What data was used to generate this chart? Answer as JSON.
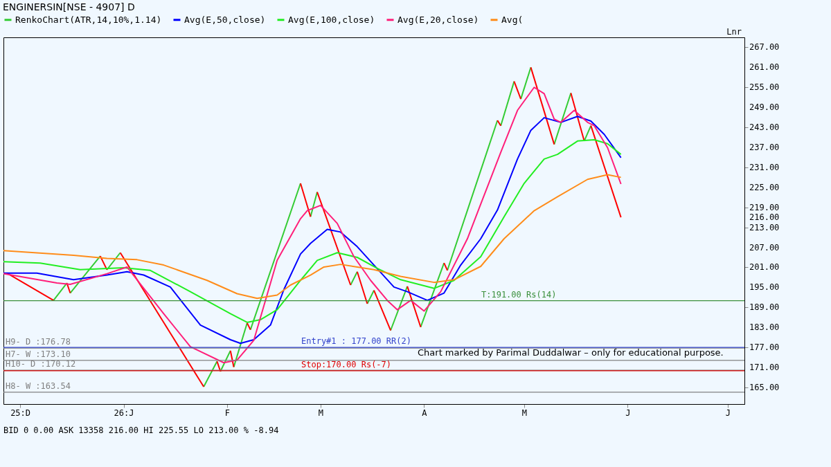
{
  "chart_data": {
    "type": "line",
    "title": "ENGINERSIN[NSE - 4907] D",
    "xlim": [
      "2025-11-26",
      "2026-07-06"
    ],
    "xticks": [
      {
        "value": "2025-12-01",
        "label": "25:D"
      },
      {
        "value": "2026-01-01",
        "label": "26:J"
      },
      {
        "value": "2026-02-01",
        "label": "F"
      },
      {
        "value": "2026-03-01",
        "label": "M"
      },
      {
        "value": "2026-04-01",
        "label": "A"
      },
      {
        "value": "2026-05-01",
        "label": "M"
      },
      {
        "value": "2026-06-01",
        "label": "J"
      },
      {
        "value": "2026-07-01",
        "label": "J"
      }
    ],
    "ylim": [
      160,
      270
    ],
    "yticks": [
      {
        "value": 165,
        "label": "165.00"
      },
      {
        "value": 171,
        "label": "171.00"
      },
      {
        "value": 177,
        "label": "177.00"
      },
      {
        "value": 183,
        "label": "183.00"
      },
      {
        "value": 189,
        "label": "189.00"
      },
      {
        "value": 195,
        "label": "195.00"
      },
      {
        "value": 201,
        "label": "201.00"
      },
      {
        "value": 207,
        "label": "207.00"
      },
      {
        "value": 213,
        "label": "213.00"
      },
      {
        "value": 216,
        "label": "216.00"
      },
      {
        "value": 219,
        "label": "219.00"
      },
      {
        "value": 225,
        "label": "225.00"
      },
      {
        "value": 231,
        "label": "231.00"
      },
      {
        "value": 237,
        "label": "237.00"
      },
      {
        "value": 243,
        "label": "243.00"
      },
      {
        "value": 249,
        "label": "249.00"
      },
      {
        "value": 255,
        "label": "255.00"
      },
      {
        "value": 261,
        "label": "261.00"
      },
      {
        "value": 267,
        "label": "267.00"
      }
    ],
    "grid": false,
    "legend": "top left",
    "series": [
      {
        "name": "RenkoChart(ATR,14,10%,1.14)",
        "color": "#33cc33",
        "x": [
          "2025-12-11",
          "2025-12-15"
        ],
        "values": [
          191.1,
          196.3
        ]
      },
      {
        "color": "#33cc33",
        "x": [
          "2025-12-16",
          "2025-12-25"
        ],
        "values": [
          193.3,
          204.4
        ]
      },
      {
        "color": "#33cc33",
        "x": [
          "2025-12-27",
          "2025-12-31"
        ],
        "values": [
          200.3,
          205.4
        ]
      },
      {
        "color": "#33cc33",
        "x": [
          "2026-01-25",
          "2026-01-29"
        ],
        "values": [
          165.2,
          172.8
        ]
      },
      {
        "color": "#33cc33",
        "x": [
          "2026-01-30",
          "2026-02-02"
        ],
        "values": [
          169.8,
          176.0
        ]
      },
      {
        "color": "#33cc33",
        "x": [
          "2026-02-03",
          "2026-02-07"
        ],
        "values": [
          171.1,
          184.3
        ]
      },
      {
        "color": "#33cc33",
        "x": [
          "2026-02-08",
          "2026-02-23"
        ],
        "values": [
          182.3,
          226.2
        ]
      },
      {
        "color": "#33cc33",
        "x": [
          "2026-02-26",
          "2026-02-28"
        ],
        "values": [
          216.2,
          223.6
        ]
      },
      {
        "color": "#33cc33",
        "x": [
          "2026-03-10",
          "2026-03-12"
        ],
        "values": [
          195.7,
          199.7
        ]
      },
      {
        "color": "#33cc33",
        "x": [
          "2026-03-15",
          "2026-03-17"
        ],
        "values": [
          190.1,
          194.1
        ]
      },
      {
        "color": "#33cc33",
        "x": [
          "2026-03-22",
          "2026-03-27"
        ],
        "values": [
          182.1,
          195.3
        ]
      },
      {
        "color": "#33cc33",
        "x": [
          "2026-03-31",
          "2026-04-07"
        ],
        "values": [
          183.1,
          202.3
        ]
      },
      {
        "color": "#33cc33",
        "x": [
          "2026-04-08",
          "2026-04-23"
        ],
        "values": [
          200.1,
          245.1
        ]
      },
      {
        "color": "#33cc33",
        "x": [
          "2026-04-24",
          "2026-04-28"
        ],
        "values": [
          243.5,
          256.8
        ]
      },
      {
        "color": "#33cc33",
        "x": [
          "2026-04-30",
          "2026-05-03"
        ],
        "values": [
          251.5,
          261.0
        ]
      },
      {
        "color": "#33cc33",
        "x": [
          "2026-05-10",
          "2026-05-15"
        ],
        "values": [
          237.9,
          253.3
        ]
      },
      {
        "color": "#33cc33",
        "x": [
          "2026-05-19",
          "2026-05-21"
        ],
        "values": [
          238.9,
          243.5
        ]
      },
      {
        "color": "#ff0000",
        "x": [
          "2025-11-27",
          "2025-12-11"
        ],
        "values": [
          199.3,
          191.1
        ]
      },
      {
        "color": "#ff0000",
        "x": [
          "2025-12-15",
          "2025-12-16"
        ],
        "values": [
          196.3,
          193.3
        ]
      },
      {
        "color": "#ff0000",
        "x": [
          "2025-12-25",
          "2025-12-27"
        ],
        "values": [
          204.4,
          200.3
        ]
      },
      {
        "color": "#ff0000",
        "x": [
          "2025-12-31",
          "2026-01-25"
        ],
        "values": [
          205.4,
          165.2
        ]
      },
      {
        "color": "#ff0000",
        "x": [
          "2026-01-29",
          "2026-01-30"
        ],
        "values": [
          172.8,
          169.8
        ]
      },
      {
        "color": "#ff0000",
        "x": [
          "2026-02-02",
          "2026-02-03"
        ],
        "values": [
          176.0,
          171.1
        ]
      },
      {
        "color": "#ff0000",
        "x": [
          "2026-02-07",
          "2026-02-08"
        ],
        "values": [
          184.3,
          182.3
        ]
      },
      {
        "color": "#ff0000",
        "x": [
          "2026-02-23",
          "2026-02-26"
        ],
        "values": [
          226.2,
          216.2
        ]
      },
      {
        "color": "#ff0000",
        "x": [
          "2026-02-28",
          "2026-03-10"
        ],
        "values": [
          223.6,
          195.7
        ]
      },
      {
        "color": "#ff0000",
        "x": [
          "2026-03-12",
          "2026-03-15"
        ],
        "values": [
          199.7,
          190.1
        ]
      },
      {
        "color": "#ff0000",
        "x": [
          "2026-03-17",
          "2026-03-22"
        ],
        "values": [
          194.1,
          182.1
        ]
      },
      {
        "color": "#ff0000",
        "x": [
          "2026-03-27",
          "2026-03-31"
        ],
        "values": [
          195.3,
          183.1
        ]
      },
      {
        "color": "#ff0000",
        "x": [
          "2026-04-07",
          "2026-04-08"
        ],
        "values": [
          202.3,
          200.1
        ]
      },
      {
        "color": "#ff0000",
        "x": [
          "2026-04-23",
          "2026-04-24"
        ],
        "values": [
          245.1,
          243.5
        ]
      },
      {
        "color": "#ff0000",
        "x": [
          "2026-04-28",
          "2026-04-30"
        ],
        "values": [
          256.8,
          251.5
        ]
      },
      {
        "color": "#ff0000",
        "x": [
          "2026-05-03",
          "2026-05-10"
        ],
        "values": [
          261.0,
          237.9
        ]
      },
      {
        "color": "#ff0000",
        "x": [
          "2026-05-15",
          "2026-05-19"
        ],
        "values": [
          253.3,
          238.9
        ]
      },
      {
        "color": "#ff0000",
        "x": [
          "2026-05-21",
          "2026-05-30"
        ],
        "values": [
          243.5,
          216.0
        ]
      },
      {
        "name": "Avg(E,50,close)",
        "color": "#0000ff",
        "x": [
          "2025-11-26",
          "2025-12-06",
          "2025-12-17",
          "2025-12-27",
          "2026-01-02",
          "2026-01-07",
          "2026-01-15",
          "2026-01-24",
          "2026-02-02",
          "2026-02-05",
          "2026-02-09",
          "2026-02-14",
          "2026-02-18",
          "2026-02-23",
          "2026-02-26",
          "2026-03-03",
          "2026-03-07",
          "2026-03-12",
          "2026-03-17",
          "2026-03-23",
          "2026-03-27",
          "2026-04-02",
          "2026-04-07",
          "2026-04-12",
          "2026-04-18",
          "2026-04-23",
          "2026-04-29",
          "2026-05-03",
          "2026-05-07",
          "2026-05-12",
          "2026-05-17",
          "2026-05-21",
          "2026-05-25",
          "2026-05-30"
        ],
        "values": [
          199.3,
          199.3,
          197.3,
          198.7,
          199.7,
          198.7,
          195.1,
          183.7,
          179.3,
          178.2,
          179.3,
          183.7,
          194.3,
          205.0,
          208.2,
          212.4,
          211.6,
          207.2,
          201.7,
          195.1,
          193.7,
          191.1,
          193.3,
          201.7,
          209.6,
          218.2,
          233.5,
          242.1,
          245.9,
          244.5,
          246.3,
          244.9,
          240.9,
          233.9
        ]
      },
      {
        "name": "Avg(E,100,close)",
        "color": "#22ee22",
        "x": [
          "2025-11-26",
          "2025-12-07",
          "2025-12-19",
          "2026-01-01",
          "2026-01-09",
          "2026-01-21",
          "2026-02-02",
          "2026-02-07",
          "2026-02-11",
          "2026-02-16",
          "2026-02-23",
          "2026-02-28",
          "2026-03-06",
          "2026-03-12",
          "2026-03-18",
          "2026-03-25",
          "2026-04-04",
          "2026-04-10",
          "2026-04-18",
          "2026-04-25",
          "2026-05-01",
          "2026-05-07",
          "2026-05-11",
          "2026-05-17",
          "2026-05-22",
          "2026-05-26",
          "2026-05-30"
        ],
        "values": [
          202.7,
          202.3,
          200.3,
          200.9,
          200.1,
          193.7,
          187.1,
          184.5,
          185.3,
          188.3,
          197.1,
          203.1,
          205.4,
          204.0,
          200.7,
          197.3,
          194.7,
          197.1,
          204.2,
          216.2,
          226.2,
          233.5,
          234.9,
          238.9,
          239.3,
          238.1,
          234.9
        ]
      },
      {
        "name": "Avg(E,20,close)",
        "color": "#ff1f7a",
        "x": [
          "2025-11-26",
          "2025-12-12",
          "2025-12-16",
          "2025-12-27",
          "2026-01-02",
          "2026-01-13",
          "2026-01-21",
          "2026-01-31",
          "2026-02-04",
          "2026-02-09",
          "2026-02-16",
          "2026-02-23",
          "2026-02-25",
          "2026-03-01",
          "2026-03-06",
          "2026-03-11",
          "2026-03-16",
          "2026-03-21",
          "2026-03-24",
          "2026-03-28",
          "2026-04-01",
          "2026-04-06",
          "2026-04-14",
          "2026-04-18",
          "2026-04-24",
          "2026-04-29",
          "2026-04-30",
          "2026-05-04",
          "2026-05-07",
          "2026-05-10",
          "2026-05-12",
          "2026-05-16",
          "2026-05-20",
          "2026-05-22",
          "2026-05-26",
          "2026-05-30"
        ],
        "values": [
          199.1,
          196.3,
          195.9,
          199.1,
          201.1,
          187.1,
          177.2,
          172.4,
          173.2,
          179.1,
          203.1,
          215.6,
          218.0,
          219.6,
          214.2,
          204.2,
          197.1,
          191.1,
          188.3,
          191.1,
          187.9,
          193.7,
          209.6,
          220.0,
          235.5,
          248.1,
          249.5,
          255.0,
          253.1,
          245.5,
          244.5,
          248.1,
          244.5,
          243.5,
          236.9,
          226.0
        ]
      },
      {
        "name": "Avg(",
        "color": "#ff8c1a",
        "x": [
          "2025-11-26",
          "2025-12-17",
          "2025-12-27",
          "2026-01-05",
          "2026-01-13",
          "2026-01-26",
          "2026-02-04",
          "2026-02-10",
          "2026-02-16",
          "2026-02-20",
          "2026-02-26",
          "2026-03-02",
          "2026-03-07",
          "2026-03-17",
          "2026-03-25",
          "2026-04-04",
          "2026-04-10",
          "2026-04-18",
          "2026-04-25",
          "2026-05-04",
          "2026-05-11",
          "2026-05-20",
          "2026-05-26",
          "2026-05-30"
        ],
        "values": [
          206.0,
          204.6,
          203.7,
          203.3,
          201.7,
          197.1,
          193.1,
          191.7,
          192.7,
          195.7,
          198.7,
          201.1,
          201.9,
          200.3,
          198.3,
          196.5,
          197.3,
          201.3,
          209.6,
          218.0,
          222.2,
          227.4,
          228.8,
          228.0
        ]
      }
    ],
    "ref_lines": [
      {
        "axis": "y",
        "value": 176.78,
        "label": "H9- D :176.78",
        "color": "#808080"
      },
      {
        "axis": "y",
        "value": 173.1,
        "label": "H7- W :173.10",
        "color": "#808080"
      },
      {
        "axis": "y",
        "value": 170.12,
        "label": "H10- D :170.12",
        "color": "#808080"
      },
      {
        "axis": "y",
        "value": 163.54,
        "label": "H8- W :163.54",
        "color": "#808080"
      },
      {
        "axis": "y",
        "value": 177.0,
        "label": "Entry#1 : 177.00 RR(2)",
        "color": "#3344cc"
      },
      {
        "axis": "y",
        "value": 170.0,
        "label": "Stop:170.00 Rs(-7)",
        "color": "#e00000"
      },
      {
        "axis": "y",
        "value": 191.0,
        "label": "T:191.00 Rs(14)",
        "color": "#3a8f3a"
      }
    ],
    "annotations": [
      "Chart marked by Parimal Duddalwar – only for educational purpose.",
      "BID 0 0.00 ASK 13358 216.00 HI 225.55 LO 213.00 % -8.94",
      "Lnr"
    ]
  }
}
